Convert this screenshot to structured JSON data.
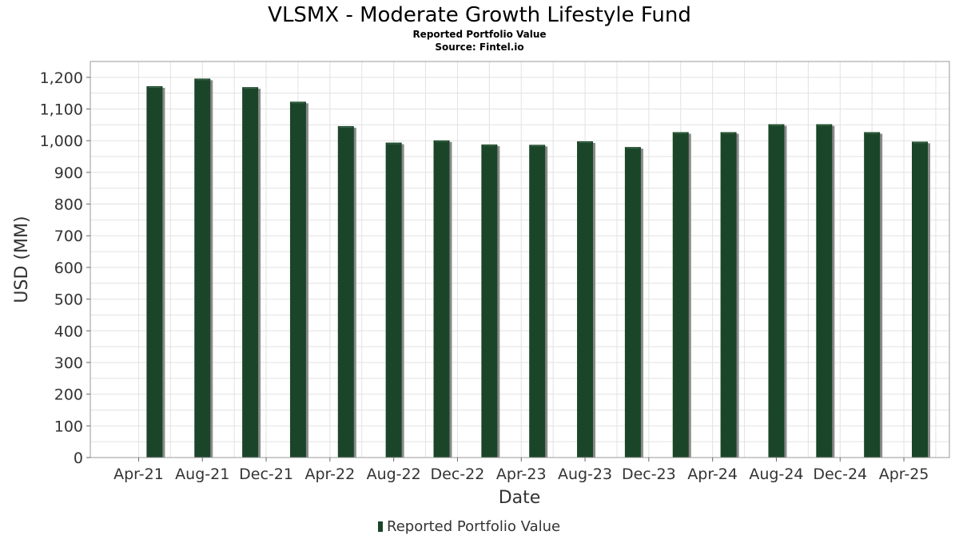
{
  "chart_data": {
    "type": "bar",
    "title": "VLSMX - Moderate Growth Lifestyle Fund",
    "subtitle": "Reported Portfolio Value",
    "source": "Source: Fintel.io",
    "xlabel": "Date",
    "ylabel": "USD (MM)",
    "ylim": [
      0,
      1250
    ],
    "yticks": [
      0,
      100,
      200,
      300,
      400,
      500,
      600,
      700,
      800,
      900,
      1000,
      1100,
      1200
    ],
    "ytick_labels": [
      "0",
      "100",
      "200",
      "300",
      "400",
      "500",
      "600",
      "700",
      "800",
      "900",
      "1,000",
      "1,100",
      "1,200"
    ],
    "xtick_labels": [
      "Apr-21",
      "Aug-21",
      "Dec-21",
      "Apr-22",
      "Aug-22",
      "Dec-22",
      "Apr-23",
      "Aug-23",
      "Dec-23",
      "Apr-24",
      "Aug-24",
      "Dec-24",
      "Apr-25"
    ],
    "grid": true,
    "legend_position": "bottom",
    "categories": [
      "2021-05",
      "2021-08",
      "2021-11",
      "2022-02",
      "2022-05",
      "2022-08",
      "2022-11",
      "2023-02",
      "2023-05",
      "2023-08",
      "2023-11",
      "2024-02",
      "2024-05",
      "2024-08",
      "2024-11",
      "2025-02",
      "2025-05"
    ],
    "series": [
      {
        "name": "Reported Portfolio Value",
        "color": "#1b4528",
        "values": [
          1172,
          1196,
          1169,
          1123,
          1046,
          994,
          1001,
          988,
          987,
          998,
          980,
          1027,
          1027,
          1052,
          1052,
          1027,
          997
        ]
      }
    ]
  }
}
